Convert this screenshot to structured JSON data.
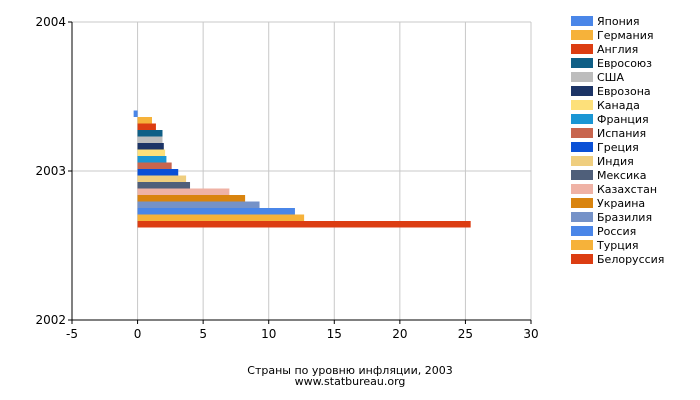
{
  "chart_data": {
    "type": "bar",
    "orientation": "horizontal",
    "title": "Страны по уровню инфляции, 2003",
    "source": "www.statbureau.org",
    "y_ticks": [
      "2004",
      "2003",
      "2002"
    ],
    "x_ticks": [
      -5,
      0,
      5,
      10,
      15,
      20,
      25,
      30
    ],
    "xlim": [
      -5,
      30
    ],
    "grid": true,
    "legend_position": "right",
    "categories": [
      "2003"
    ],
    "series": [
      {
        "name": "Япония",
        "values": [
          -0.3
        ],
        "color": "#4a86e8"
      },
      {
        "name": "Германия",
        "values": [
          1.1
        ],
        "color": "#f6b23a"
      },
      {
        "name": "Англия",
        "values": [
          1.4
        ],
        "color": "#dc3d12"
      },
      {
        "name": "Евросоюз",
        "values": [
          1.9
        ],
        "color": "#0f5f86"
      },
      {
        "name": "США",
        "values": [
          1.9
        ],
        "color": "#bdbdbd"
      },
      {
        "name": "Еврозона",
        "values": [
          2.0
        ],
        "color": "#1c3466"
      },
      {
        "name": "Канада",
        "values": [
          2.1
        ],
        "color": "#fde07a"
      },
      {
        "name": "Франция",
        "values": [
          2.2
        ],
        "color": "#1a96d4"
      },
      {
        "name": "Испания",
        "values": [
          2.6
        ],
        "color": "#c8654e"
      },
      {
        "name": "Греция",
        "values": [
          3.1
        ],
        "color": "#0a50d6"
      },
      {
        "name": "Индия",
        "values": [
          3.7
        ],
        "color": "#efce7f"
      },
      {
        "name": "Мексика",
        "values": [
          4.0
        ],
        "color": "#4f5f7a"
      },
      {
        "name": "Казахстан",
        "values": [
          7.0
        ],
        "color": "#efb2a5"
      },
      {
        "name": "Украина",
        "values": [
          8.2
        ],
        "color": "#d9840f"
      },
      {
        "name": "Бразилия",
        "values": [
          9.3
        ],
        "color": "#7592c8"
      },
      {
        "name": "Россия",
        "values": [
          12.0
        ],
        "color": "#4a86e8"
      },
      {
        "name": "Турция",
        "values": [
          12.7
        ],
        "color": "#f6b23a"
      },
      {
        "name": "Белоруссия",
        "values": [
          25.4
        ],
        "color": "#dc3d12"
      }
    ]
  }
}
